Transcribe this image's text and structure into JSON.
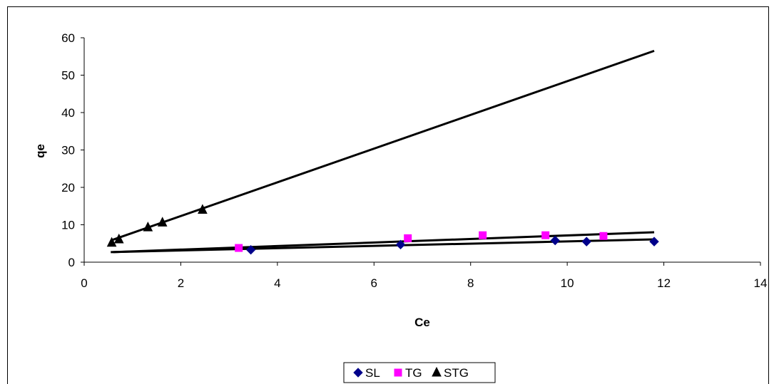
{
  "chart_data": {
    "type": "scatter",
    "xlabel": "Ce",
    "ylabel": "qe",
    "xlim": [
      0,
      14
    ],
    "ylim": [
      0,
      60
    ],
    "xticks": [
      "0",
      "2",
      "4",
      "6",
      "8",
      "10",
      "12",
      "14"
    ],
    "yticks": [
      "0",
      "10",
      "20",
      "30",
      "40",
      "50",
      "60"
    ],
    "grid": false,
    "legend_position": "bottom",
    "series": [
      {
        "name": "SL",
        "marker": "diamond",
        "color": "#00008B",
        "points": [
          [
            3.45,
            3.3
          ],
          [
            6.55,
            4.7
          ],
          [
            9.75,
            5.8
          ],
          [
            10.4,
            5.5
          ],
          [
            11.8,
            5.5
          ]
        ],
        "trendline": [
          [
            0.55,
            2.7
          ],
          [
            11.8,
            6.1
          ]
        ]
      },
      {
        "name": "TG",
        "marker": "square",
        "color": "#FF00FF",
        "points": [
          [
            3.2,
            3.8
          ],
          [
            6.7,
            6.4
          ],
          [
            8.25,
            7.2
          ],
          [
            9.55,
            7.2
          ],
          [
            10.75,
            7.0
          ]
        ],
        "trendline": [
          [
            0.6,
            2.7
          ],
          [
            11.8,
            8.0
          ]
        ]
      },
      {
        "name": "STG",
        "marker": "triangle",
        "color": "#000000",
        "points": [
          [
            0.57,
            5.2
          ],
          [
            0.72,
            6.1
          ],
          [
            1.32,
            9.3
          ],
          [
            1.62,
            10.6
          ],
          [
            2.45,
            14.0
          ]
        ],
        "trendline": [
          [
            0.55,
            5.8
          ],
          [
            11.8,
            56.5
          ]
        ]
      }
    ]
  }
}
